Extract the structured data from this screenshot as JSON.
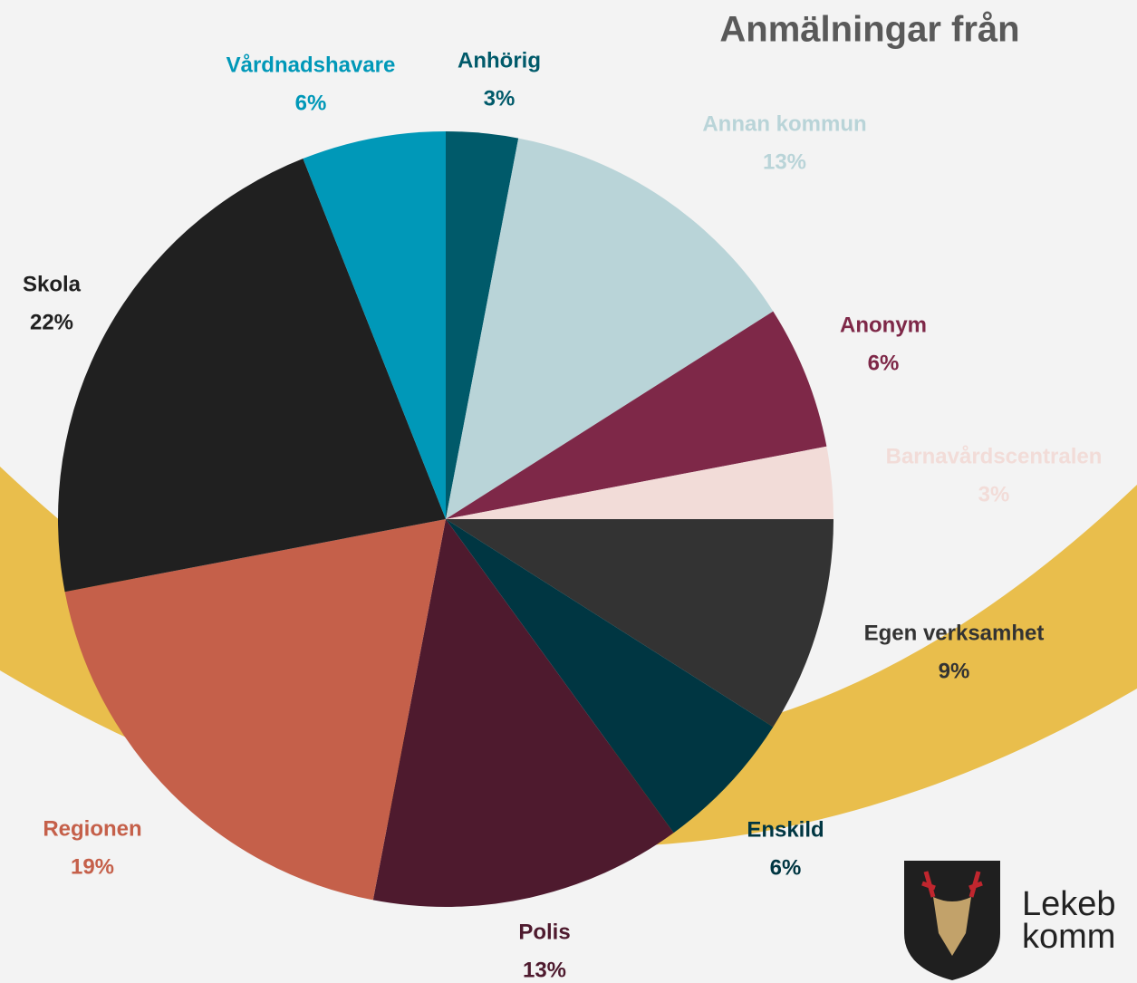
{
  "chart_data": {
    "type": "pie",
    "title": "Anmälningar från",
    "categories": [
      "Anhörig",
      "Annan kommun",
      "Anonym",
      "Barnavårdscentralen",
      "Egen verksamhet",
      "Enskild",
      "Polis",
      "Regionen",
      "Skola",
      "Vårdnadshavare"
    ],
    "values": [
      3,
      13,
      6,
      3,
      9,
      6,
      13,
      19,
      22,
      6
    ],
    "value_labels": [
      "3%",
      "13%",
      "6%",
      "3%",
      "9%",
      "6%",
      "13%",
      "19%",
      "22%",
      "6%"
    ],
    "colors": [
      "#005a6a",
      "#b9d4d8",
      "#7e2848",
      "#f2dcd8",
      "#333333",
      "#003642",
      "#4e1a2e",
      "#c5604a",
      "#202020",
      "#0098b8"
    ]
  },
  "logo": {
    "line1": "Lekeb",
    "line2": "komm"
  }
}
